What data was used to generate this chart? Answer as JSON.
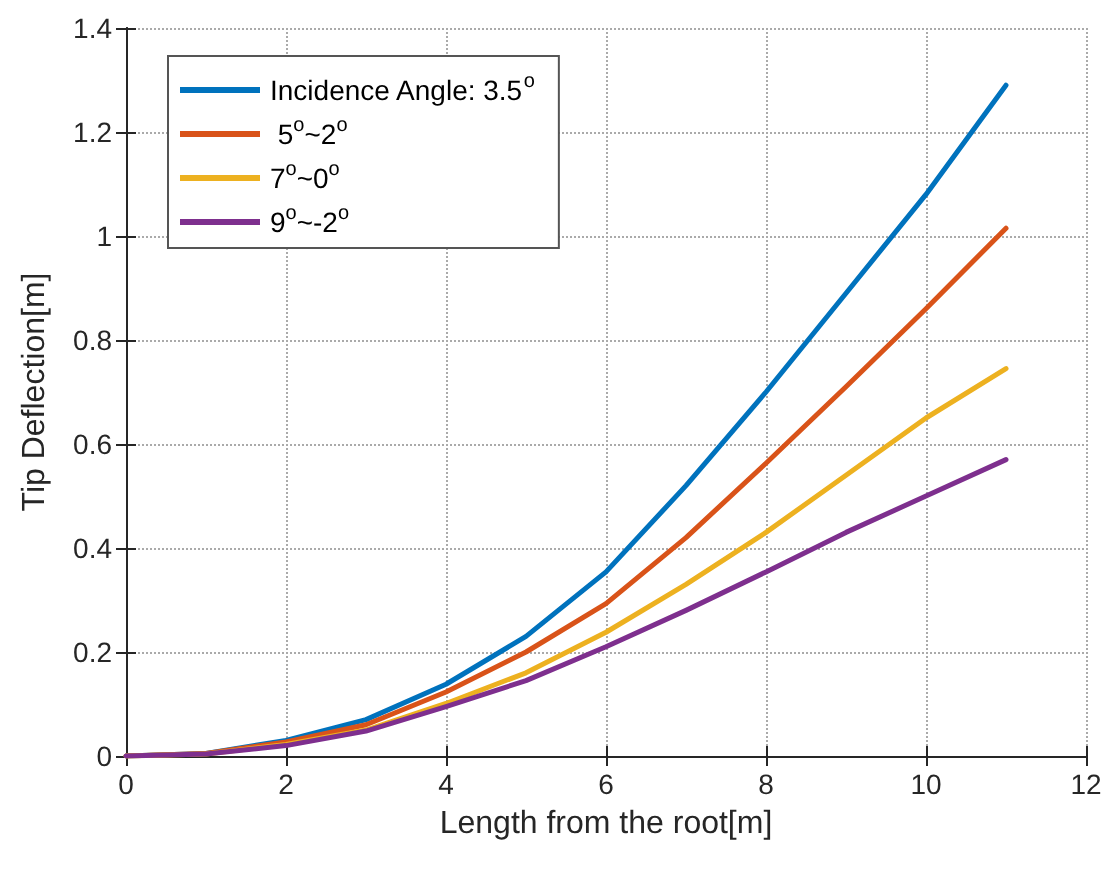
{
  "chart_data": {
    "type": "line",
    "xlabel": "Length from the root[m]",
    "ylabel": "Tip Deflection[m]",
    "x": [
      0,
      1,
      2,
      3,
      4,
      5,
      6,
      7,
      8,
      9,
      10,
      11
    ],
    "series": [
      {
        "name": "Incidence Angle: 3.5$^{o}$",
        "color": "#0072bd",
        "values": [
          0,
          0.005,
          0.03,
          0.07,
          0.138,
          0.23,
          0.354,
          0.52,
          0.7,
          0.89,
          1.08,
          1.29
        ]
      },
      {
        "name": " 5$^{o}$~2$^{o}$",
        "color": "#d95319",
        "values": [
          0,
          0.005,
          0.027,
          0.06,
          0.123,
          0.2,
          0.293,
          0.42,
          0.563,
          0.71,
          0.86,
          1.015
        ]
      },
      {
        "name": "7$^{o}$~0$^{o}$",
        "color": "#edb120",
        "values": [
          0,
          0.004,
          0.022,
          0.05,
          0.101,
          0.16,
          0.238,
          0.33,
          0.43,
          0.54,
          0.65,
          0.745
        ]
      },
      {
        "name": "9$^{o}$~-2$^{o}$",
        "color": "#7e2f8e",
        "values": [
          0,
          0.004,
          0.02,
          0.048,
          0.095,
          0.145,
          0.21,
          0.28,
          0.354,
          0.43,
          0.5,
          0.57
        ]
      }
    ],
    "xlim": [
      0,
      12
    ],
    "xticks": [
      0,
      2,
      4,
      6,
      8,
      10,
      12
    ],
    "ylim": [
      0,
      1.4
    ],
    "yticks": [
      0,
      0.2,
      0.4,
      0.6,
      0.8,
      1,
      1.2,
      1.4
    ],
    "grid": true,
    "legend": "top left",
    "marker": "none",
    "line_style": "solid"
  }
}
